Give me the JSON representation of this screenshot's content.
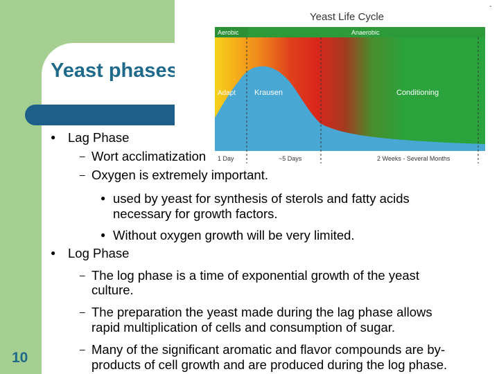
{
  "slide": {
    "title": "Yeast phases",
    "page_number": "10"
  },
  "figure": {
    "title": "Yeast Life Cycle",
    "band_aerobic": "Aerobic",
    "band_anaerobic": "Anaerobic",
    "stage_adapt": "Adapt",
    "stage_krausen": "Krausen",
    "stage_conditioning": "Conditioning",
    "time_1": "1 Day",
    "time_2": "~5 Days",
    "time_3": "2 Weeks - Several Months",
    "colors": {
      "aerobic_band": "#2d9a3a",
      "curve_fill": "#49a7d4",
      "green": "#2aa33c",
      "red": "#d9261c",
      "orange": "#f08a1c",
      "yellow": "#f5d21a"
    }
  },
  "content": {
    "lag_phase": "Lag Phase",
    "lag_sub1": "Wort acclimatization",
    "lag_sub2": "Oxygen is extremely important.",
    "lag_sub2_b1_l1": "used by yeast for synthesis of sterols and fatty acids",
    "lag_sub2_b1_l2": "necessary for growth factors.",
    "lag_sub2_b2": "Without oxygen growth will be very limited.",
    "log_phase": "Log Phase",
    "log_sub1_l1": "The log phase is a time of exponential growth of the yeast",
    "log_sub1_l2": "culture.",
    "log_sub2_l1": "The preparation the yeast made during the lag phase allows",
    "log_sub2_l2": "rapid multiplication of cells and consumption of sugar.",
    "log_sub3_l1": "Many of the significant aromatic and flavor compounds are by-",
    "log_sub3_l2": "products of cell growth and are produced during the log phase."
  }
}
